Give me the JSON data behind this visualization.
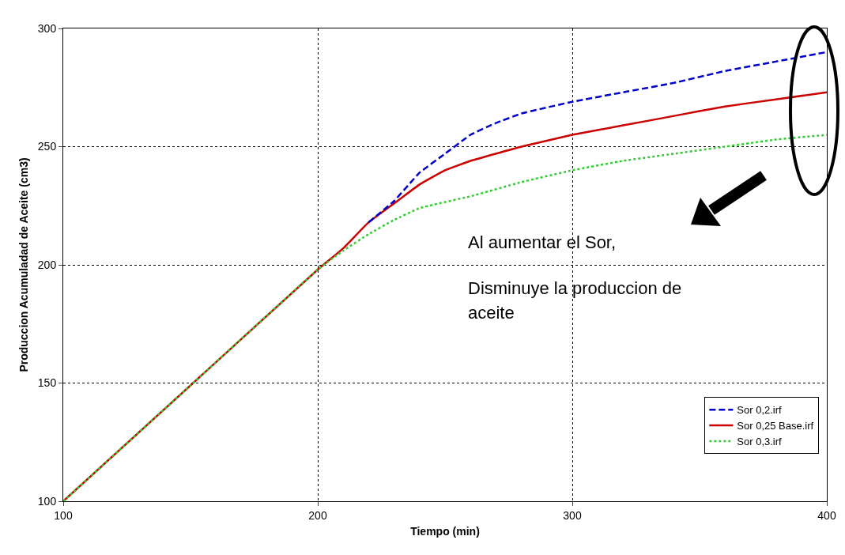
{
  "chart_data": {
    "type": "line",
    "xlabel": "Tiempo (min)",
    "ylabel": "Produccion Acumuladad de Aceite (cm3)",
    "xlim": [
      100,
      400
    ],
    "xticks": [
      100,
      200,
      300,
      400
    ],
    "ylim": [
      100,
      300
    ],
    "yticks": [
      100,
      150,
      200,
      250,
      300
    ],
    "grid": true,
    "legend": "bottom right",
    "marker": "none",
    "series": [
      {
        "name": "Sor 0,2.irf",
        "color": "#0000cc",
        "line_style": "dashed",
        "x": [
          220,
          230,
          240,
          250,
          260,
          270,
          280,
          300,
          320,
          340,
          360,
          380,
          400
        ],
        "values": [
          218,
          227,
          239,
          247,
          255,
          260,
          264,
          269,
          273,
          277,
          282,
          286,
          290
        ]
      },
      {
        "name": "Sor 0,25 Base.irf",
        "color": "#cc0000",
        "line_style": "solid",
        "x": [
          100,
          150,
          200,
          210,
          220,
          230,
          240,
          250,
          260,
          280,
          300,
          320,
          340,
          360,
          380,
          400
        ],
        "values": [
          100,
          149,
          198,
          207,
          218,
          226,
          234,
          240,
          244,
          250,
          255,
          259,
          263,
          267,
          270,
          273
        ]
      },
      {
        "name": "Sor 0,3.irf",
        "color": "#33cc33",
        "line_style": "dotted",
        "x": [
          100,
          150,
          200,
          210,
          220,
          230,
          240,
          260,
          280,
          300,
          320,
          340,
          360,
          380,
          400
        ],
        "values": [
          100,
          149,
          198,
          206,
          213,
          219,
          224,
          229,
          235,
          240,
          244,
          247,
          250,
          253,
          255
        ]
      }
    ],
    "annotations": [
      "Al aumentar el Sor,",
      "Disminuye la produccion de aceite"
    ]
  }
}
